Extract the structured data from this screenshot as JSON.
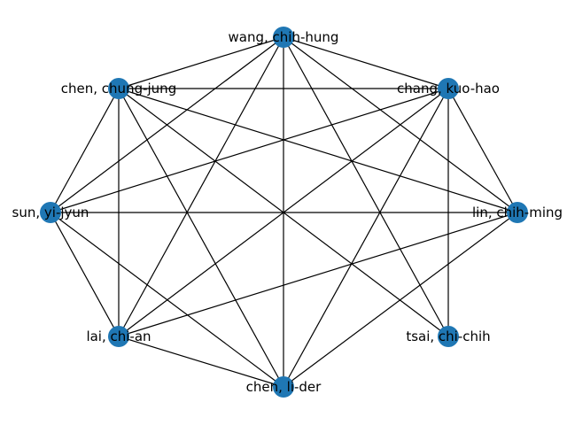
{
  "graph": {
    "node_color": "#1f77b4",
    "edge_color": "#000000",
    "nodes": [
      {
        "id": "wang",
        "label": "wang, chih-hung"
      },
      {
        "id": "chang",
        "label": "chang, kuo-hao"
      },
      {
        "id": "lin",
        "label": "lin, chih-ming"
      },
      {
        "id": "tsai",
        "label": "tsai, chi-chih"
      },
      {
        "id": "chenlider",
        "label": "chen, li-der"
      },
      {
        "id": "lai",
        "label": "lai, chi-an"
      },
      {
        "id": "sun",
        "label": "sun, yi-jyun"
      },
      {
        "id": "chenchung",
        "label": "chen, chung-jung"
      }
    ],
    "edges": [
      [
        "wang",
        "chang"
      ],
      [
        "wang",
        "lin"
      ],
      [
        "wang",
        "tsai"
      ],
      [
        "wang",
        "chenlider"
      ],
      [
        "wang",
        "lai"
      ],
      [
        "wang",
        "sun"
      ],
      [
        "wang",
        "chenchung"
      ],
      [
        "chang",
        "lin"
      ],
      [
        "chang",
        "tsai"
      ],
      [
        "chang",
        "chenlider"
      ],
      [
        "chang",
        "lai"
      ],
      [
        "chang",
        "sun"
      ],
      [
        "chang",
        "chenchung"
      ],
      [
        "lin",
        "chenlider"
      ],
      [
        "lin",
        "lai"
      ],
      [
        "lin",
        "sun"
      ],
      [
        "lin",
        "chenchung"
      ],
      [
        "chenlider",
        "lai"
      ],
      [
        "chenlider",
        "sun"
      ],
      [
        "chenlider",
        "chenchung"
      ],
      [
        "lai",
        "sun"
      ],
      [
        "lai",
        "chenchung"
      ],
      [
        "sun",
        "chenchung"
      ],
      [
        "tsai",
        "chenchung"
      ]
    ]
  }
}
